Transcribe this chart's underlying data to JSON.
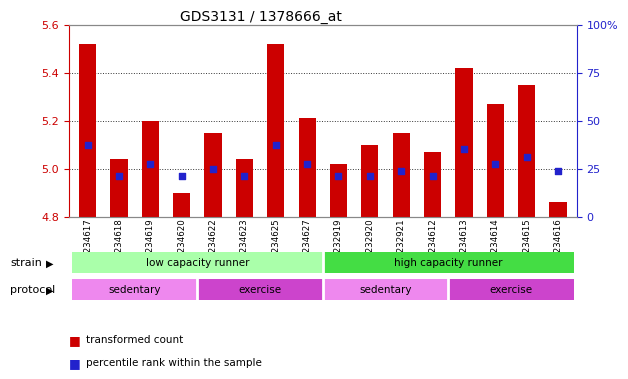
{
  "title": "GDS3131 / 1378666_at",
  "samples": [
    "GSM234617",
    "GSM234618",
    "GSM234619",
    "GSM234620",
    "GSM234622",
    "GSM234623",
    "GSM234625",
    "GSM234627",
    "GSM232919",
    "GSM232920",
    "GSM232921",
    "GSM234612",
    "GSM234613",
    "GSM234614",
    "GSM234615",
    "GSM234616"
  ],
  "bar_values": [
    5.52,
    5.04,
    5.2,
    4.9,
    5.15,
    5.04,
    5.52,
    5.21,
    5.02,
    5.1,
    5.15,
    5.07,
    5.42,
    5.27,
    5.35,
    4.86
  ],
  "bar_base": 4.8,
  "dot_values": [
    5.1,
    4.97,
    5.02,
    4.97,
    5.0,
    4.97,
    5.1,
    5.02,
    4.97,
    4.97,
    4.99,
    4.97,
    5.08,
    5.02,
    5.05,
    4.99
  ],
  "ylim": [
    4.8,
    5.6
  ],
  "y2lim": [
    0,
    100
  ],
  "yticks": [
    4.8,
    5.0,
    5.2,
    5.4,
    5.6
  ],
  "y2ticks": [
    0,
    25,
    50,
    75,
    100
  ],
  "bar_color": "#cc0000",
  "dot_color": "#2222cc",
  "grid_color": "#000000",
  "strain_groups": [
    {
      "label": "low capacity runner",
      "start": 0,
      "end": 8,
      "color": "#aaffaa"
    },
    {
      "label": "high capacity runner",
      "start": 8,
      "end": 16,
      "color": "#44dd44"
    }
  ],
  "protocol_groups": [
    {
      "label": "sedentary",
      "start": 0,
      "end": 4,
      "color": "#ee88ee"
    },
    {
      "label": "exercise",
      "start": 4,
      "end": 8,
      "color": "#cc44cc"
    },
    {
      "label": "sedentary",
      "start": 8,
      "end": 12,
      "color": "#ee88ee"
    },
    {
      "label": "exercise",
      "start": 12,
      "end": 16,
      "color": "#cc44cc"
    }
  ],
  "legend_items": [
    {
      "label": "transformed count",
      "color": "#cc0000"
    },
    {
      "label": "percentile rank within the sample",
      "color": "#2222cc"
    }
  ],
  "tick_color_left": "#cc0000",
  "tick_color_right": "#2222cc"
}
